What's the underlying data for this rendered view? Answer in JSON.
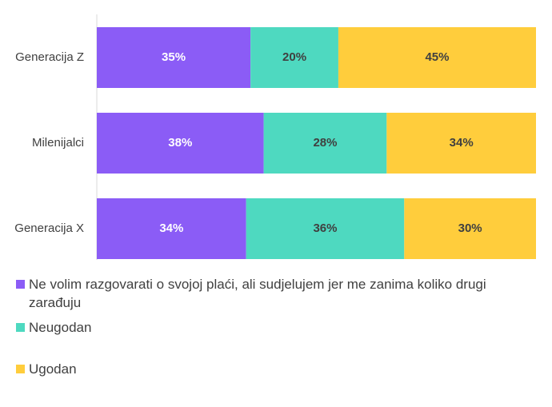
{
  "chart_data": {
    "type": "bar",
    "orientation": "horizontal",
    "stacked": true,
    "normalized": true,
    "categories": [
      "Generacija Z",
      "Milenijalci",
      "Generacija X"
    ],
    "series": [
      {
        "name": "Ne volim razgovarati o svojoj plaći, ali sudjelujem jer me zanima koliko drugi zarađuju",
        "values": [
          35,
          38,
          34
        ],
        "labels": [
          "35%",
          "38%",
          "34%"
        ],
        "color": "#8B5CF6",
        "label_color": "#FFFFFF"
      },
      {
        "name": "Neugodan",
        "values": [
          20,
          28,
          36
        ],
        "labels": [
          "20%",
          "28%",
          "36%"
        ],
        "color": "#4ED9C0",
        "label_color": "#404040"
      },
      {
        "name": "Ugodan",
        "values": [
          45,
          34,
          30
        ],
        "labels": [
          "45%",
          "34%",
          "30%"
        ],
        "color": "#FFCD3C",
        "label_color": "#404040"
      }
    ],
    "xlim": [
      0,
      100
    ],
    "grid": false,
    "legend_position": "bottom"
  }
}
